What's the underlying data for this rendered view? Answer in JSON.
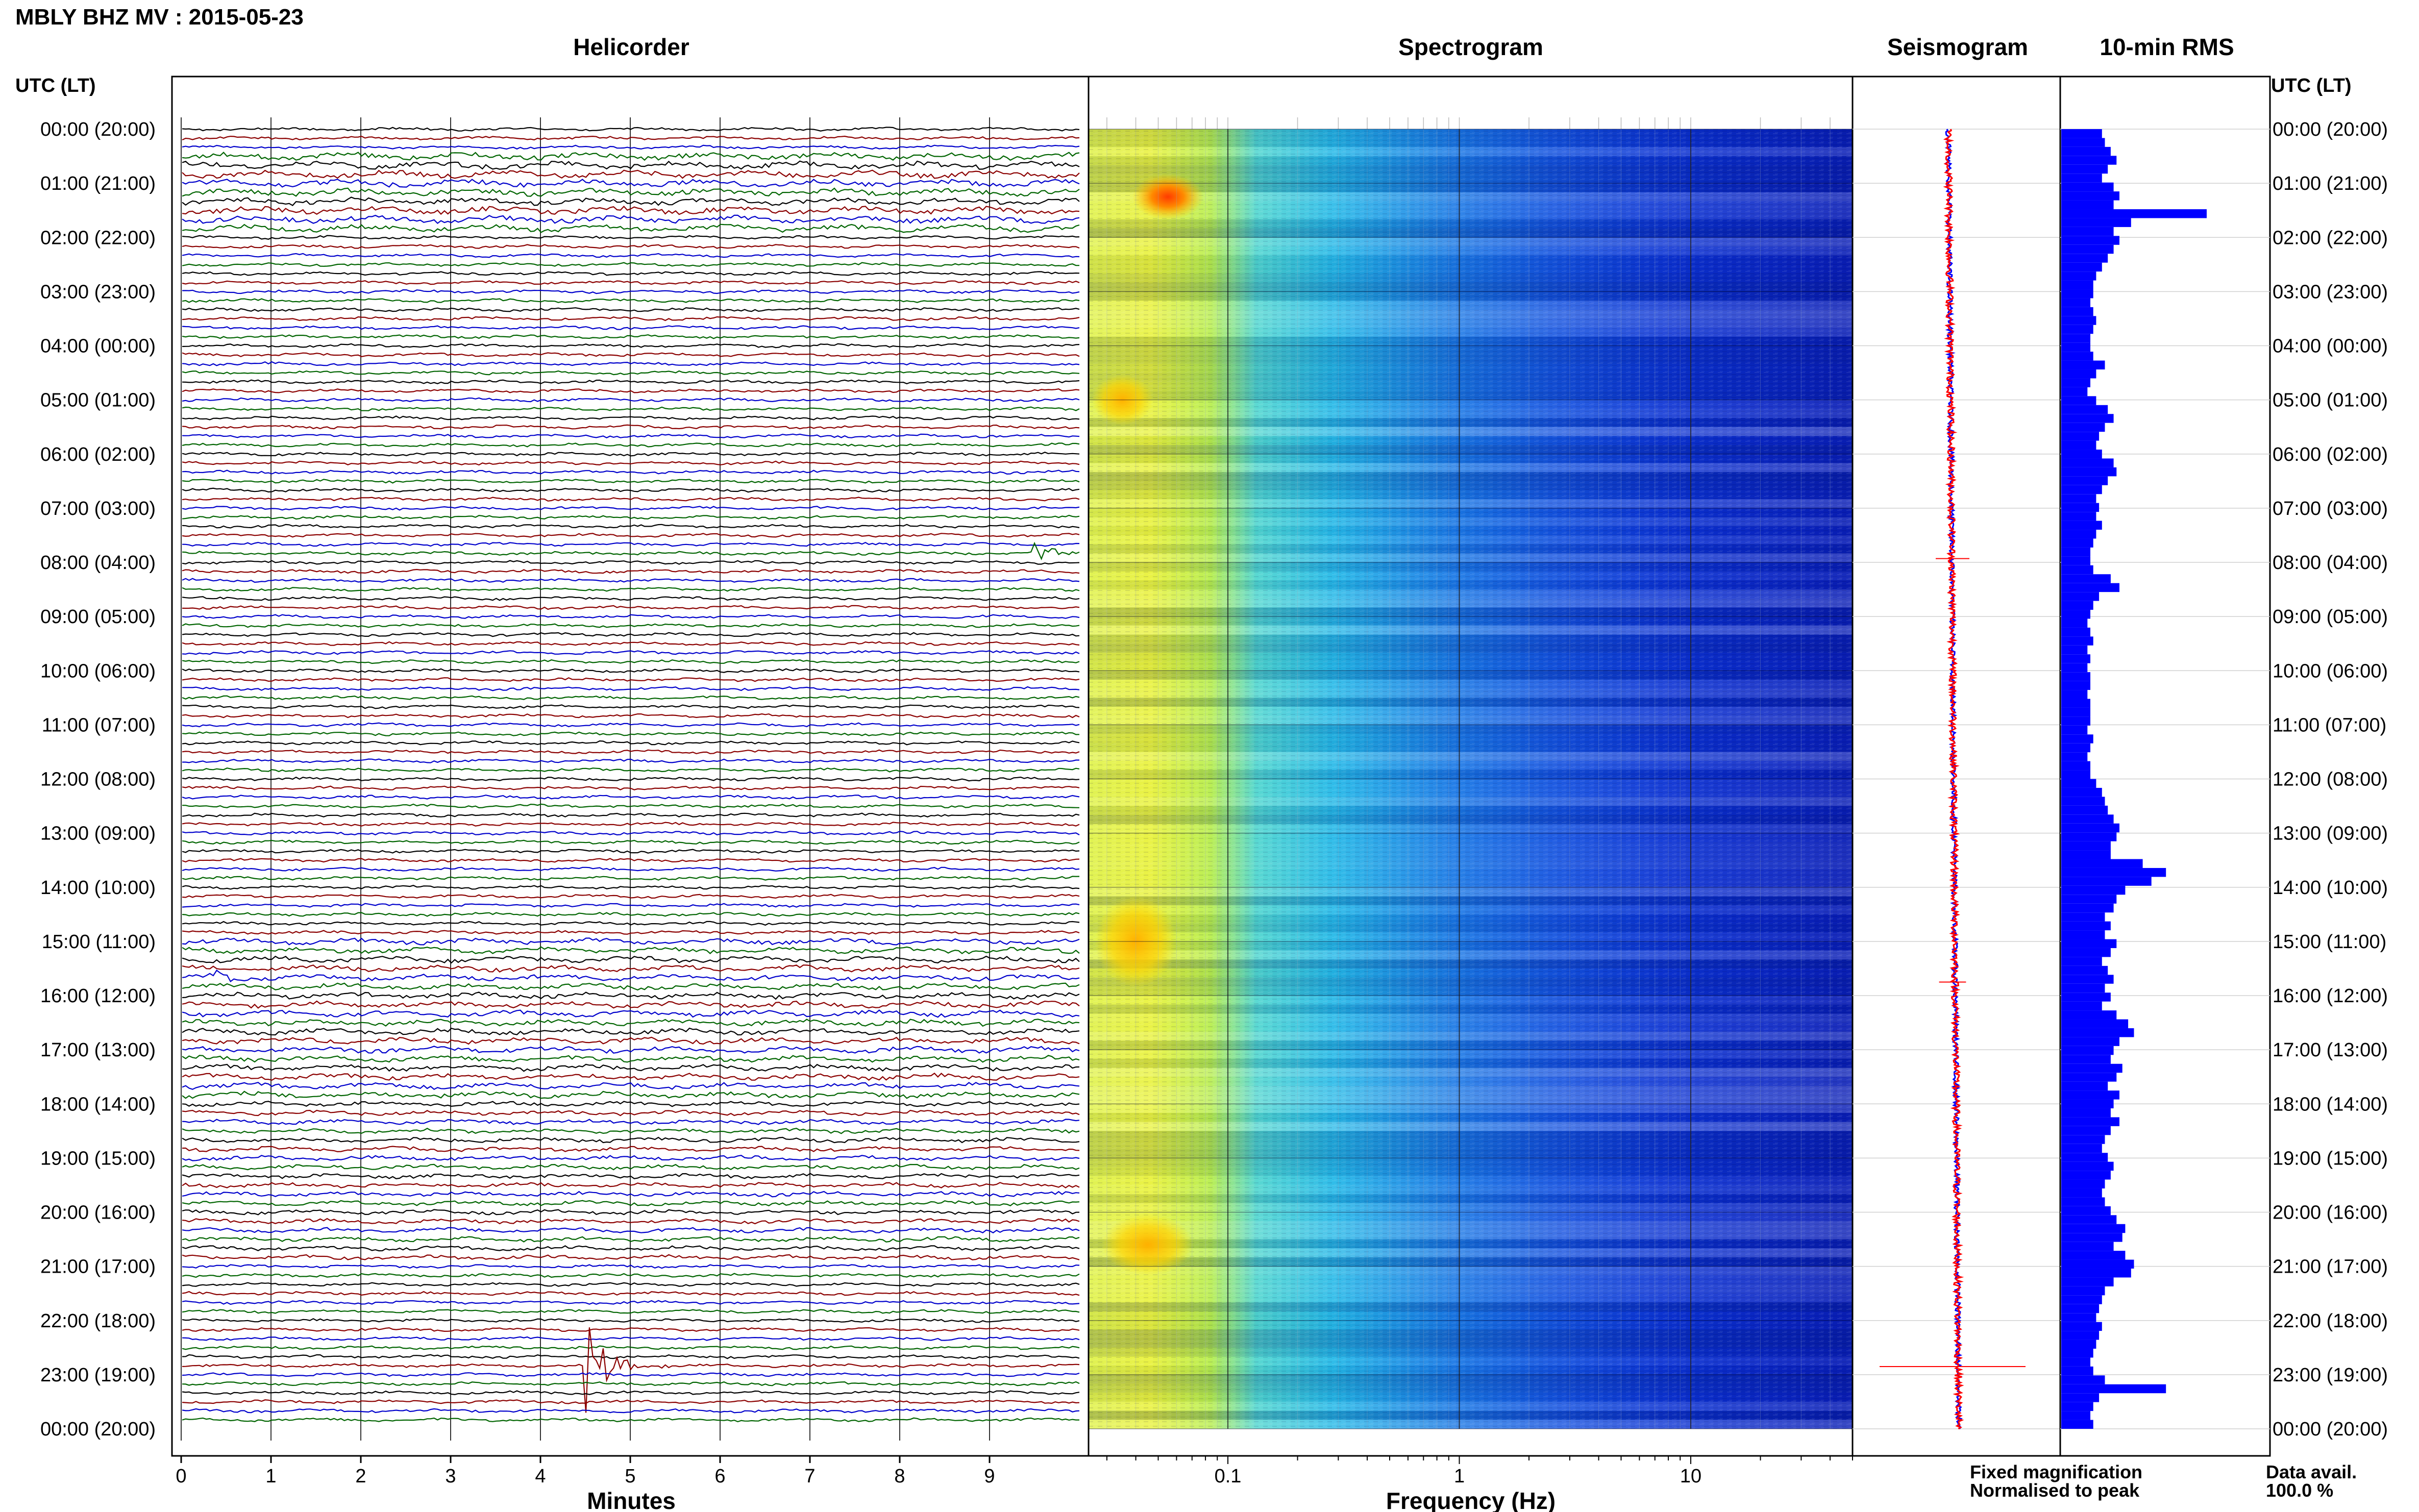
{
  "header": {
    "station_title": "MBLY BHZ MV : 2015-05-23",
    "utc_lt_left": "UTC (LT)",
    "utc_lt_right": "UTC (LT)"
  },
  "panels": {
    "helicorder": {
      "title": "Helicorder",
      "xlabel": "Minutes"
    },
    "spectrogram": {
      "title": "Spectrogram",
      "xlabel": "Frequency (Hz)"
    },
    "seismogram": {
      "title": "Seismogram"
    },
    "rms": {
      "title": "10-min RMS"
    }
  },
  "legend": {
    "fixed": "Fixed magnification",
    "fixed_color": "#0000ff",
    "normalised": "Normalised to peak",
    "normalised_color": "#ff0000"
  },
  "availability": {
    "label": "Data avail.",
    "value": "100.0 %"
  },
  "colors": {
    "trace_cycle": [
      "#000000",
      "#8b0000",
      "#0000cc",
      "#006400"
    ],
    "rms_bar": "#0000ff"
  },
  "chart_data": {
    "type": "heatmap",
    "time_labels": [
      "00:00 (20:00)",
      "01:00 (21:00)",
      "02:00 (22:00)",
      "03:00 (23:00)",
      "04:00 (00:00)",
      "05:00 (01:00)",
      "06:00 (02:00)",
      "07:00 (03:00)",
      "08:00 (04:00)",
      "09:00 (05:00)",
      "10:00 (06:00)",
      "11:00 (07:00)",
      "12:00 (08:00)",
      "13:00 (09:00)",
      "14:00 (10:00)",
      "15:00 (11:00)",
      "16:00 (12:00)",
      "17:00 (13:00)",
      "18:00 (14:00)",
      "19:00 (15:00)",
      "20:00 (16:00)",
      "21:00 (17:00)",
      "22:00 (18:00)",
      "23:00 (19:00)",
      "00:00 (20:00)"
    ],
    "helicorder": {
      "minute_ticks": [
        "0",
        "1",
        "2",
        "3",
        "4",
        "5",
        "6",
        "7",
        "8",
        "9"
      ],
      "xlim": [
        0,
        10
      ],
      "lines_per_hour": 6,
      "events": [
        {
          "hour": 7.93,
          "minute": 9.5,
          "amplitude": 1.5
        },
        {
          "hour": 15.75,
          "minute": 0.35,
          "amplitude": 1.2
        },
        {
          "hour": 22.85,
          "minute": 4.55,
          "amplitude": 6.5
        }
      ]
    },
    "spectrogram": {
      "x_scale": "log",
      "xlim": [
        0.025,
        50
      ],
      "tick_labels": [
        "0.1",
        "1",
        "10"
      ],
      "tick_values": [
        0.1,
        1,
        10
      ]
    },
    "rms_10min": [
      0.28,
      0.3,
      0.34,
      0.38,
      0.32,
      0.28,
      0.36,
      0.4,
      0.36,
      1.0,
      0.48,
      0.36,
      0.4,
      0.36,
      0.32,
      0.28,
      0.24,
      0.22,
      0.22,
      0.2,
      0.22,
      0.24,
      0.22,
      0.2,
      0.2,
      0.22,
      0.3,
      0.24,
      0.2,
      0.18,
      0.24,
      0.32,
      0.36,
      0.3,
      0.26,
      0.24,
      0.28,
      0.36,
      0.38,
      0.32,
      0.28,
      0.24,
      0.26,
      0.24,
      0.28,
      0.24,
      0.22,
      0.2,
      0.2,
      0.22,
      0.34,
      0.4,
      0.26,
      0.22,
      0.2,
      0.18,
      0.2,
      0.22,
      0.18,
      0.2,
      0.18,
      0.2,
      0.2,
      0.18,
      0.2,
      0.2,
      0.2,
      0.18,
      0.22,
      0.2,
      0.18,
      0.2,
      0.2,
      0.24,
      0.28,
      0.3,
      0.32,
      0.36,
      0.4,
      0.38,
      0.34,
      0.34,
      0.56,
      0.72,
      0.62,
      0.44,
      0.38,
      0.36,
      0.3,
      0.34,
      0.3,
      0.38,
      0.34,
      0.28,
      0.32,
      0.36,
      0.3,
      0.34,
      0.28,
      0.38,
      0.46,
      0.5,
      0.4,
      0.36,
      0.34,
      0.42,
      0.38,
      0.32,
      0.4,
      0.36,
      0.34,
      0.4,
      0.34,
      0.3,
      0.28,
      0.32,
      0.36,
      0.34,
      0.3,
      0.28,
      0.3,
      0.34,
      0.38,
      0.44,
      0.42,
      0.36,
      0.44,
      0.5,
      0.48,
      0.36,
      0.3,
      0.28,
      0.26,
      0.24,
      0.28,
      0.26,
      0.24,
      0.22,
      0.2,
      0.22,
      0.3,
      0.72,
      0.26,
      0.22,
      0.2,
      0.22
    ]
  }
}
